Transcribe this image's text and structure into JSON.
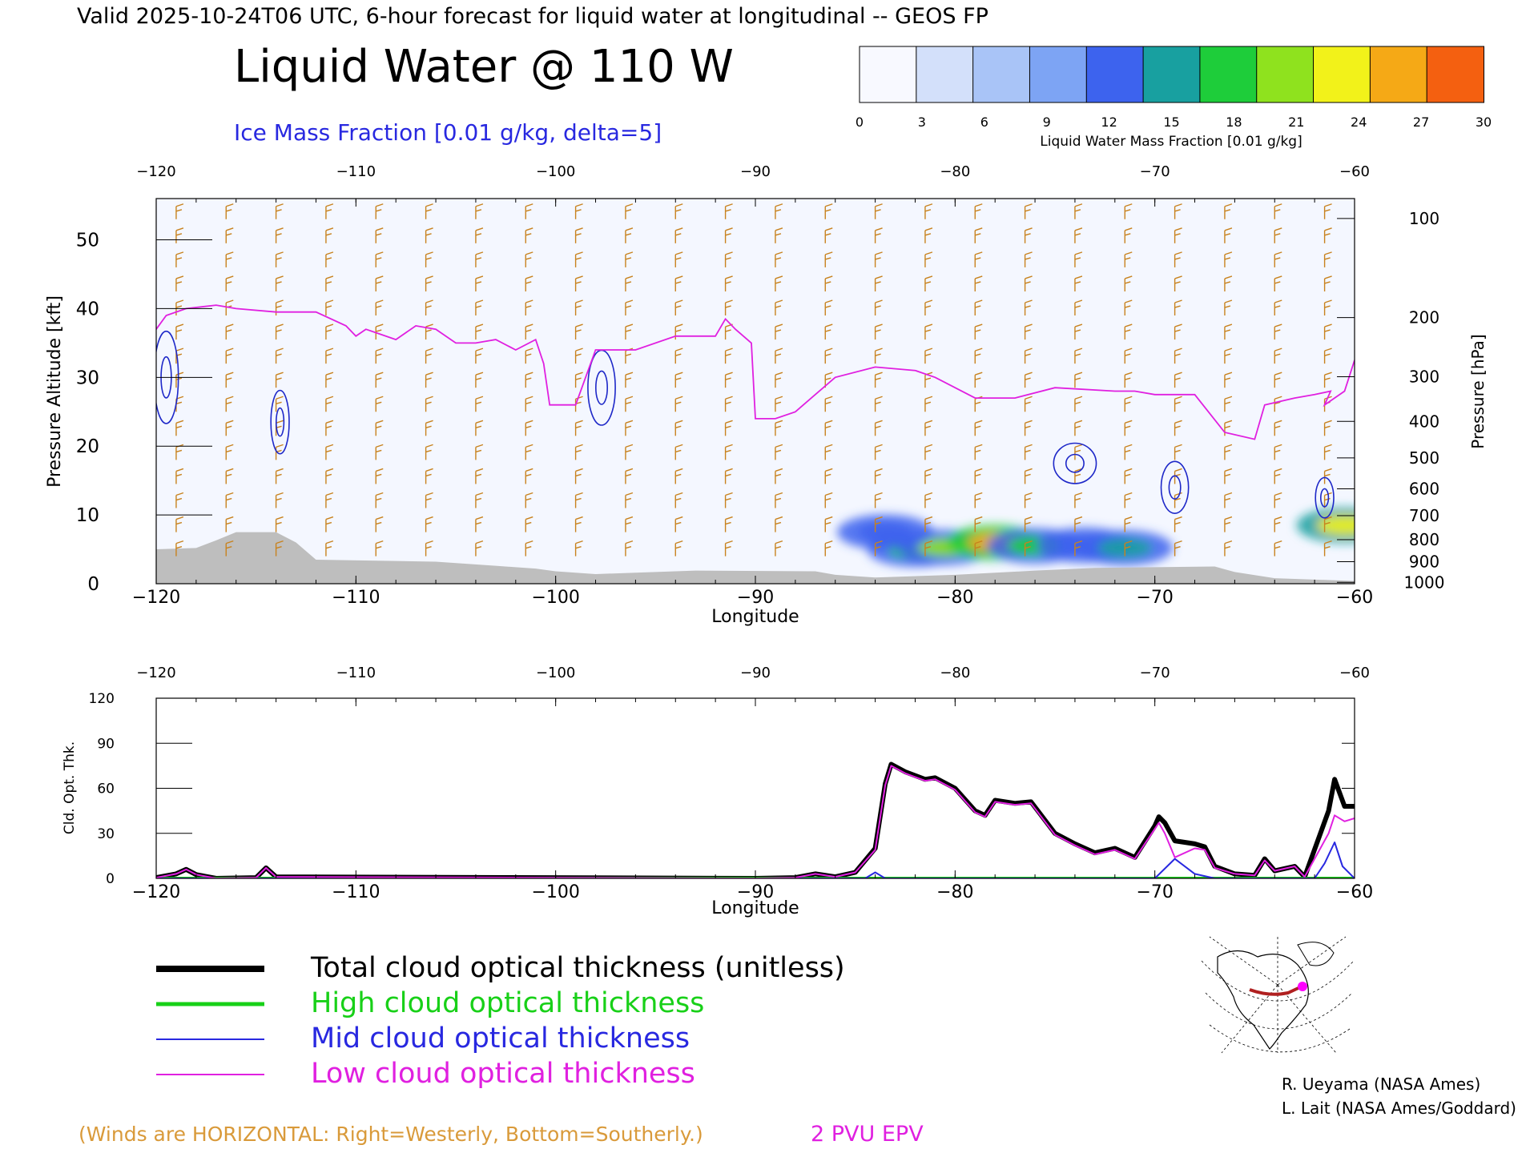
{
  "header": {
    "valid_line": "Valid 2025-10-24T06 UTC, 6-hour forecast for liquid water at longitudinal -- GEOS FP",
    "title": "Liquid Water @ 110 W",
    "contour_label": "Ice Mass Fraction [0.01 g/kg, delta=5]"
  },
  "colorbar": {
    "label": "Liquid Water Mass Fraction [0.01 g/kg]",
    "ticks": [
      "0",
      "3",
      "6",
      "9",
      "12",
      "15",
      "18",
      "21",
      "24",
      "27",
      "30"
    ],
    "colors": [
      "#f8f9ff",
      "#d3e0fa",
      "#a9c4f7",
      "#7da4f4",
      "#3d63ee",
      "#18a0a0",
      "#1ecd3a",
      "#8fe21e",
      "#f2f21a",
      "#f5a916",
      "#f46010"
    ]
  },
  "colors": {
    "wind_barb": "#c8821e",
    "epv": "#e020e0",
    "ice_contour": "#1e28c8",
    "terrain": "#bebebe",
    "total": "#000000",
    "high": "#18d018",
    "mid": "#2828e0",
    "low": "#e020e0"
  },
  "chart_data": [
    {
      "type": "heatmap",
      "x_ticks": [
        "-120",
        "-110",
        "-100",
        "-90",
        "-80",
        "-70",
        "-60"
      ],
      "xlabel": "Longitude",
      "xlim": [
        -120,
        -60
      ],
      "ylabel": "Pressure Altitude [kft]",
      "y_ticks": [
        "0",
        "10",
        "20",
        "30",
        "40",
        "50"
      ],
      "ylim": [
        0,
        56
      ],
      "y2label": "Pressure [hPa]",
      "y2_ticks": [
        {
          "label": "100",
          "kft": 53.1
        },
        {
          "label": "200",
          "kft": 38.7
        },
        {
          "label": "300",
          "kft": 30.1
        },
        {
          "label": "400",
          "kft": 23.6
        },
        {
          "label": "500",
          "kft": 18.3
        },
        {
          "label": "600",
          "kft": 13.8
        },
        {
          "label": "700",
          "kft": 9.9
        },
        {
          "label": "800",
          "kft": 6.4
        },
        {
          "label": "900",
          "kft": 3.2
        },
        {
          "label": "1000",
          "kft": 0.2
        }
      ],
      "terrain_kft": [
        [
          -120,
          5
        ],
        [
          -118,
          5.2
        ],
        [
          -117,
          6.3
        ],
        [
          -116,
          7.5
        ],
        [
          -114,
          7.5
        ],
        [
          -113,
          6
        ],
        [
          -112,
          3.5
        ],
        [
          -108,
          3.3
        ],
        [
          -106,
          3.2
        ],
        [
          -103,
          2.6
        ],
        [
          -101,
          2.2
        ],
        [
          -100,
          1.8
        ],
        [
          -98,
          1.4
        ],
        [
          -96,
          1.6
        ],
        [
          -93,
          1.9
        ],
        [
          -87,
          1.8
        ],
        [
          -86,
          1.3
        ],
        [
          -84,
          0.9
        ],
        [
          -80,
          1.3
        ],
        [
          -76,
          1.9
        ],
        [
          -73,
          2.3
        ],
        [
          -67,
          2.5
        ],
        [
          -66,
          1.7
        ],
        [
          -64,
          0.8
        ],
        [
          -60,
          0.4
        ]
      ],
      "epv_2pvu_kft": [
        [
          -120,
          37
        ],
        [
          -119.5,
          39
        ],
        [
          -118.5,
          40
        ],
        [
          -117,
          40.5
        ],
        [
          -116,
          40
        ],
        [
          -114,
          39.5
        ],
        [
          -112,
          39.5
        ],
        [
          -110.5,
          37.5
        ],
        [
          -110,
          36
        ],
        [
          -109.5,
          37
        ],
        [
          -109,
          36.5
        ],
        [
          -108,
          35.5
        ],
        [
          -107,
          37.5
        ],
        [
          -106,
          37
        ],
        [
          -105,
          35
        ],
        [
          -104,
          35
        ],
        [
          -103,
          35.5
        ],
        [
          -102,
          34
        ],
        [
          -101,
          35.5
        ],
        [
          -100.6,
          32
        ],
        [
          -100.3,
          26
        ],
        [
          -100,
          26
        ],
        [
          -99,
          26
        ],
        [
          -98,
          34
        ],
        [
          -96,
          34
        ],
        [
          -94,
          36
        ],
        [
          -92,
          36
        ],
        [
          -91.5,
          38.5
        ],
        [
          -91,
          37
        ],
        [
          -90.2,
          35
        ],
        [
          -90,
          24
        ],
        [
          -89,
          24
        ],
        [
          -88,
          25
        ],
        [
          -86,
          30
        ],
        [
          -84,
          31.5
        ],
        [
          -82,
          31
        ],
        [
          -81,
          30
        ],
        [
          -79,
          27
        ],
        [
          -77,
          27
        ],
        [
          -75,
          28.5
        ],
        [
          -72,
          28
        ],
        [
          -71,
          28
        ],
        [
          -70,
          27.5
        ],
        [
          -68,
          27.5
        ],
        [
          -66.5,
          22
        ],
        [
          -65,
          21
        ],
        [
          -64.5,
          26
        ],
        [
          -63,
          27
        ],
        [
          -62,
          27.5
        ],
        [
          -61.2,
          28
        ],
        [
          -61.5,
          26
        ],
        [
          -60.5,
          28
        ],
        [
          -60,
          32.5
        ]
      ],
      "liquid_water_blobs": [
        {
          "lon": -82,
          "kft": 5,
          "value": 18
        },
        {
          "lon": -80.5,
          "kft": 5.3,
          "value": 21
        },
        {
          "lon": -78,
          "kft": 6,
          "value": 27
        },
        {
          "lon": -76,
          "kft": 5.5,
          "value": 18
        },
        {
          "lon": -73.5,
          "kft": 5.6,
          "value": 12
        },
        {
          "lon": -71.5,
          "kft": 5.2,
          "value": 15
        },
        {
          "lon": -83.5,
          "kft": 7.5,
          "value": 12
        },
        {
          "lon": -60.5,
          "kft": 8.5,
          "value": 24
        }
      ]
    },
    {
      "type": "line",
      "xlabel": "Longitude",
      "ylabel": "Cld. Opt. Thk.",
      "x_ticks": [
        "-120",
        "-110",
        "-100",
        "-90",
        "-80",
        "-70",
        "-60"
      ],
      "y_ticks": [
        "0",
        "30",
        "60",
        "90",
        "120"
      ],
      "xlim": [
        -120,
        -60
      ],
      "ylim": [
        0,
        120
      ],
      "series": [
        {
          "name": "Total cloud optical thickness (unitless)",
          "key": "total",
          "width": 6,
          "points": [
            [
              -120,
              0.5
            ],
            [
              -119,
              3
            ],
            [
              -118.5,
              6
            ],
            [
              -118,
              2.5
            ],
            [
              -117,
              0
            ],
            [
              -115,
              0.5
            ],
            [
              -114.5,
              7
            ],
            [
              -114,
              1
            ],
            [
              -90,
              0
            ],
            [
              -88,
              0.5
            ],
            [
              -87,
              3
            ],
            [
              -86,
              1
            ],
            [
              -85,
              4
            ],
            [
              -84,
              20
            ],
            [
              -83.5,
              63
            ],
            [
              -83.2,
              76
            ],
            [
              -82.5,
              71
            ],
            [
              -81.5,
              66
            ],
            [
              -81,
              67
            ],
            [
              -80,
              60
            ],
            [
              -79,
              45
            ],
            [
              -78.5,
              42
            ],
            [
              -78,
              52
            ],
            [
              -77,
              50
            ],
            [
              -76.2,
              51
            ],
            [
              -75,
              30
            ],
            [
              -74,
              23
            ],
            [
              -73,
              17
            ],
            [
              -72,
              20
            ],
            [
              -71,
              14
            ],
            [
              -70,
              35
            ],
            [
              -69.8,
              41
            ],
            [
              -69.5,
              37
            ],
            [
              -69,
              25
            ],
            [
              -68,
              23
            ],
            [
              -67.5,
              21
            ],
            [
              -67,
              8
            ],
            [
              -66,
              3
            ],
            [
              -65,
              2
            ],
            [
              -64.5,
              13
            ],
            [
              -64,
              5
            ],
            [
              -63,
              8
            ],
            [
              -62.5,
              1
            ],
            [
              -61.3,
              45
            ],
            [
              -61,
              66
            ],
            [
              -60.5,
              48
            ],
            [
              -60,
              48
            ]
          ]
        },
        {
          "name": "High cloud optical thickness",
          "key": "high",
          "width": 4,
          "points": [
            [
              -120,
              0
            ],
            [
              -60,
              0
            ]
          ]
        },
        {
          "name": "Mid cloud optical thickness",
          "key": "mid",
          "width": 2,
          "points": [
            [
              -120,
              0
            ],
            [
              -84.5,
              0
            ],
            [
              -84,
              4
            ],
            [
              -83.5,
              0
            ],
            [
              -70,
              0
            ],
            [
              -69,
              13
            ],
            [
              -68,
              3
            ],
            [
              -67,
              0
            ],
            [
              -62,
              0
            ],
            [
              -61.5,
              10
            ],
            [
              -61,
              24
            ],
            [
              -60.6,
              8
            ],
            [
              -60,
              0
            ]
          ]
        },
        {
          "name": "Low cloud optical thickness",
          "key": "low",
          "width": 2,
          "points": [
            [
              -120,
              0.5
            ],
            [
              -119,
              3
            ],
            [
              -118.5,
              6
            ],
            [
              -118,
              2.5
            ],
            [
              -117,
              0
            ],
            [
              -115,
              0.5
            ],
            [
              -114.5,
              7
            ],
            [
              -114,
              1
            ],
            [
              -90,
              0
            ],
            [
              -88,
              0.5
            ],
            [
              -87,
              3
            ],
            [
              -86,
              1
            ],
            [
              -85,
              4
            ],
            [
              -84,
              19
            ],
            [
              -83.5,
              62
            ],
            [
              -83.2,
              75
            ],
            [
              -82.5,
              70
            ],
            [
              -81.5,
              65
            ],
            [
              -81,
              66
            ],
            [
              -80,
              59
            ],
            [
              -79,
              44
            ],
            [
              -78.5,
              41
            ],
            [
              -78,
              51
            ],
            [
              -77,
              49
            ],
            [
              -76.2,
              50
            ],
            [
              -75,
              29
            ],
            [
              -74,
              22
            ],
            [
              -73,
              16
            ],
            [
              -72,
              19
            ],
            [
              -71,
              13
            ],
            [
              -70,
              33
            ],
            [
              -69.8,
              37
            ],
            [
              -69.5,
              30
            ],
            [
              -69,
              14
            ],
            [
              -68,
              20
            ],
            [
              -67.5,
              19
            ],
            [
              -67,
              7
            ],
            [
              -66,
              3
            ],
            [
              -65,
              2
            ],
            [
              -64.5,
              12
            ],
            [
              -64,
              5
            ],
            [
              -63,
              8
            ],
            [
              -62.5,
              1
            ],
            [
              -61.3,
              30
            ],
            [
              -61,
              42
            ],
            [
              -60.5,
              38
            ],
            [
              -60,
              40
            ]
          ]
        }
      ]
    }
  ],
  "legend": {
    "total": "Total cloud optical thickness (unitless)",
    "high": "High cloud optical thickness",
    "mid": "Mid cloud optical thickness",
    "low": "Low cloud optical thickness"
  },
  "footer": {
    "winds_note": "(Winds are HORIZONTAL: Right=Westerly, Bottom=Southerly.)",
    "epv_label": "2 PVU EPV",
    "credit1": "R. Ueyama (NASA Ames)",
    "credit2": "L. Lait (NASA Ames/Goddard)"
  },
  "inset_map": {
    "icon": "north-america-polar-map-icon"
  }
}
